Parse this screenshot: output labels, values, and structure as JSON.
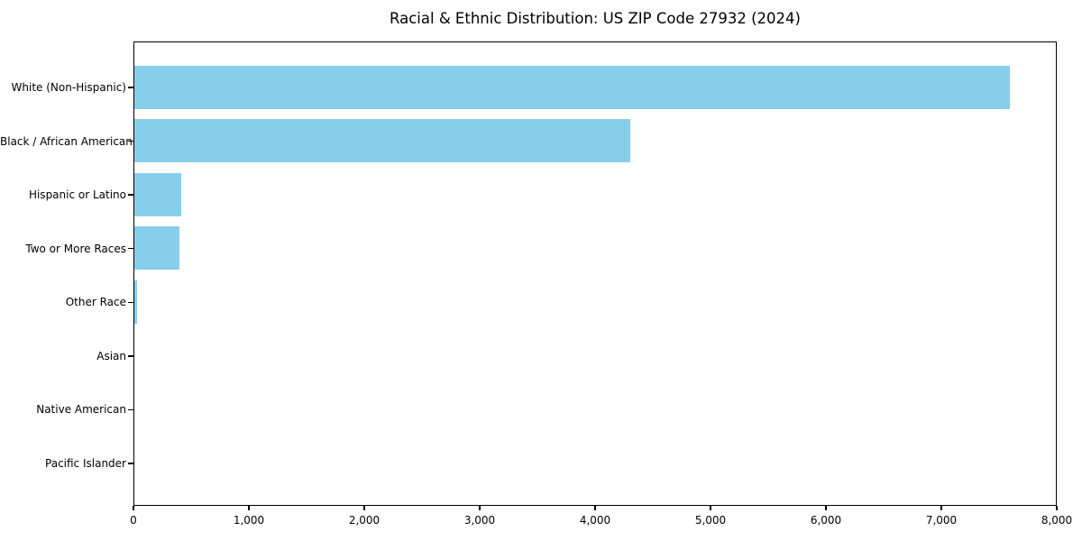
{
  "chart_data": {
    "type": "bar",
    "orientation": "horizontal",
    "title": "Racial & Ethnic Distribution: US ZIP Code 27932 (2024)",
    "xlabel": "",
    "ylabel": "",
    "categories": [
      "White (Non-Hispanic)",
      "Black / African American",
      "Hispanic or Latino",
      "Two or More Races",
      "Other Race",
      "Asian",
      "Native American",
      "Pacific Islander"
    ],
    "values": [
      7610,
      4310,
      405,
      395,
      20,
      0,
      0,
      0
    ],
    "xlim": [
      0,
      8000
    ],
    "x_ticks": [
      0,
      1000,
      2000,
      3000,
      4000,
      5000,
      6000,
      7000,
      8000
    ],
    "x_tick_labels": [
      "0",
      "1,000",
      "2,000",
      "3,000",
      "4,000",
      "5,000",
      "6,000",
      "7,000",
      "8,000"
    ],
    "grid": false,
    "legend": null,
    "bar_color": "#87CEEB",
    "background_color": "#FFFFFF",
    "spine_color": "#000000",
    "text_color": "#000000"
  }
}
